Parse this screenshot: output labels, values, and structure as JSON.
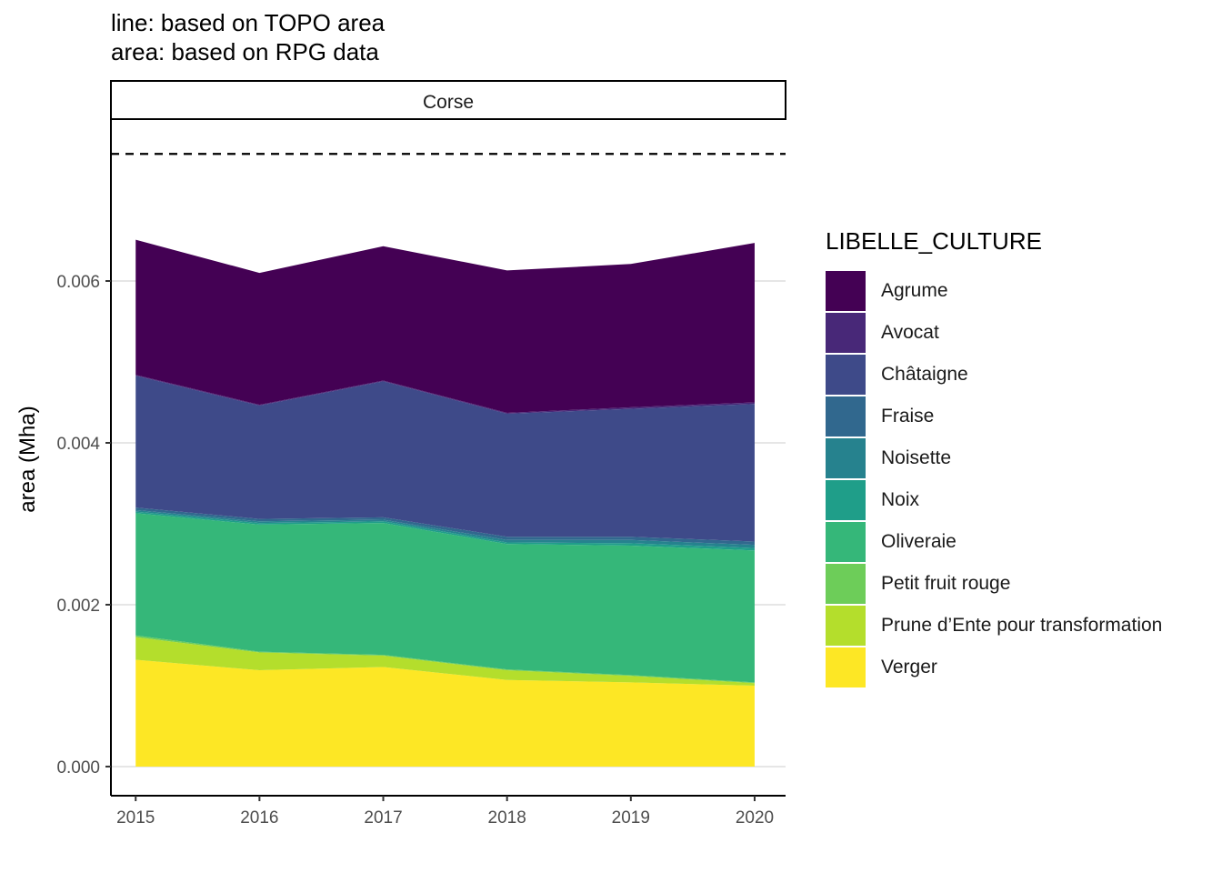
{
  "subtitle_lines": [
    "line: based on TOPO area",
    "area: based on RPG data"
  ],
  "chart_data": {
    "type": "area",
    "stacked": true,
    "facet": "Corse",
    "x": [
      2015,
      2016,
      2017,
      2018,
      2019,
      2020
    ],
    "xlim": [
      2014.8,
      2020.25
    ],
    "ylim": [
      -0.00036,
      0.008
    ],
    "yticks": [
      "0.000",
      "0.002",
      "0.004",
      "0.006"
    ],
    "ytick_values": [
      0,
      0.002,
      0.004,
      0.006
    ],
    "xticks": [
      "2015",
      "2016",
      "2017",
      "2018",
      "2019",
      "2020"
    ],
    "ylabel": "area (Mha)",
    "xlabel": "",
    "grid": "horizontal major",
    "reference_line": {
      "value": 0.00757,
      "style": "dashed"
    },
    "legend_title": "LIBELLE_CULTURE",
    "legend_position": "right",
    "series": [
      {
        "name": "Verger",
        "color": "#FDE725",
        "values": [
          0.00132,
          0.00119,
          0.00123,
          0.00107,
          0.00104,
          0.001
        ]
      },
      {
        "name": "Prune d’Ente pour transformation",
        "color": "#B4DE2C",
        "values": [
          0.00028,
          0.00022,
          0.00014,
          0.00012,
          8e-05,
          3e-05
        ]
      },
      {
        "name": "Petit fruit rouge",
        "color": "#6DCD59",
        "values": [
          2e-05,
          1e-05,
          1e-05,
          1e-05,
          1e-05,
          1e-05
        ]
      },
      {
        "name": "Oliveraie",
        "color": "#35B779",
        "values": [
          0.00151,
          0.00157,
          0.00163,
          0.00155,
          0.0016,
          0.00163
        ]
      },
      {
        "name": "Noix",
        "color": "#1F9E89",
        "values": [
          2e-05,
          2e-05,
          2e-05,
          2e-05,
          3e-05,
          3e-05
        ]
      },
      {
        "name": "Noisette",
        "color": "#26828E",
        "values": [
          2e-05,
          2e-05,
          2e-05,
          3e-05,
          4e-05,
          4e-05
        ]
      },
      {
        "name": "Fraise",
        "color": "#31688E",
        "values": [
          3e-05,
          3e-05,
          3e-05,
          4e-05,
          4e-05,
          4e-05
        ]
      },
      {
        "name": "Châtaigne",
        "color": "#3E4A89",
        "values": [
          0.00163,
          0.0014,
          0.00168,
          0.00152,
          0.00158,
          0.0017
        ]
      },
      {
        "name": "Avocat",
        "color": "#482878",
        "values": [
          1e-05,
          1e-05,
          1e-05,
          1e-05,
          2e-05,
          2e-05
        ]
      },
      {
        "name": "Agrume",
        "color": "#440154",
        "values": [
          0.00167,
          0.00163,
          0.00166,
          0.00176,
          0.00177,
          0.00197
        ]
      }
    ]
  }
}
